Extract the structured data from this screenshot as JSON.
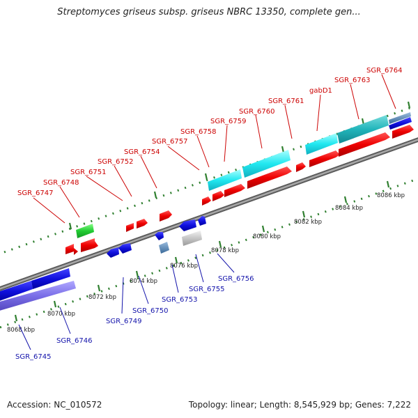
{
  "title": "Streptomyces griseus subsp. griseus NBRC 13350, complete gen...",
  "footer": {
    "accession": "Accession: NC_010572",
    "summary": "Topology: linear; Length: 8,545,929 bp; Genes: 7,222"
  },
  "colors": {
    "forward_label": "#cc0000",
    "reverse_label": "#1111aa",
    "backbone": "#8c8c8c",
    "ruler": "#2f7f2f"
  },
  "ticks": [
    "8068 kbp",
    "8070 kbp",
    "8072 kbp",
    "8074 kbp",
    "8076 kbp",
    "8078 kbp",
    "8080 kbp",
    "8082 kbp",
    "8084 kbp",
    "8086 kbp"
  ],
  "forward_labels": [
    "SGR_6747",
    "SGR_6748",
    "SGR_6751",
    "SGR_6752",
    "SGR_6754",
    "SGR_6757",
    "SGR_6758",
    "SGR_6759",
    "SGR_6760",
    "SGR_6761",
    "gabD1",
    "SGR_6763",
    "SGR_6764"
  ],
  "reverse_labels": [
    "SGR_6745",
    "SGR_6746",
    "SGR_6749",
    "SGR_6750",
    "SGR_6753",
    "SGR_6755",
    "SGR_6756"
  ]
}
